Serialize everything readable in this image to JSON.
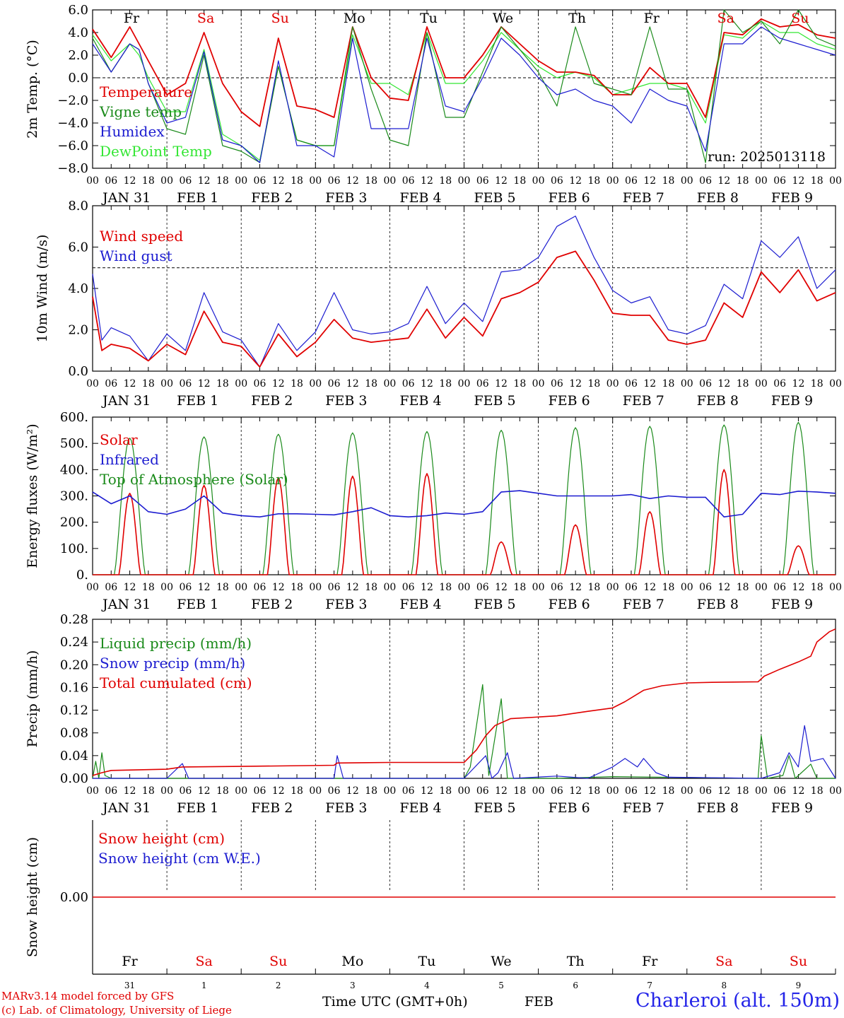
{
  "chart_data": [
    {
      "type": "line",
      "panel": "temperature",
      "ylabel": "2m Temp. (°C)",
      "ylim": [
        -8,
        6
      ],
      "ytick_labels": [
        "−8.0",
        "−6.0",
        "−4.0",
        "−2.0",
        "0.0",
        "2.0",
        "4.0",
        "6.0"
      ],
      "ytick_values": [
        -8,
        -6,
        -4,
        -2,
        0,
        2,
        4,
        6
      ],
      "ref_line": 0,
      "annotation": "run: 2025013118",
      "x_hours": [
        0,
        6,
        12,
        15,
        18,
        24,
        30,
        36,
        42,
        48,
        54,
        60,
        66,
        72,
        78,
        84,
        90,
        96,
        102,
        108,
        114,
        120,
        126,
        132,
        138,
        144,
        150,
        156,
        162,
        168,
        174,
        180,
        186,
        192,
        198,
        204,
        210,
        216,
        222,
        228,
        234,
        240
      ],
      "series": [
        {
          "name": "Temperature",
          "color": "#e00000",
          "values": [
            4.3,
            1.8,
            4.5,
            3.0,
            1.5,
            -1.5,
            -0.5,
            4.0,
            -0.5,
            -3.0,
            -4.3,
            3.5,
            -2.5,
            -2.8,
            -3.5,
            4.5,
            0.0,
            -1.8,
            -2.0,
            4.5,
            0.0,
            0.0,
            2.0,
            4.5,
            3.0,
            1.5,
            0.5,
            0.5,
            0.2,
            -1.5,
            -1.5,
            0.9,
            -0.5,
            -0.5,
            -3.5,
            4.0,
            3.8,
            5.2,
            4.5,
            4.7,
            3.8,
            3.5
          ]
        },
        {
          "name": "Vigne temp",
          "color": "#1a8a1a",
          "values": [
            3.5,
            0.5,
            3.0,
            2.5,
            -0.5,
            -4.5,
            -5.0,
            2.0,
            -6.0,
            -6.5,
            -7.5,
            1.0,
            -5.5,
            -6.0,
            -6.0,
            4.5,
            -1.0,
            -5.5,
            -6.0,
            4.0,
            -3.5,
            -3.5,
            0.5,
            4.5,
            2.5,
            0.5,
            -2.5,
            4.5,
            -0.5,
            -1.0,
            -1.5,
            4.5,
            -1.0,
            -1.0,
            -7.5,
            6.0,
            4.0,
            5.0,
            3.0,
            6.0,
            3.5,
            2.8
          ]
        },
        {
          "name": "Humidex",
          "color": "#1c1cd0",
          "values": [
            3.0,
            0.5,
            3.0,
            2.5,
            -0.5,
            -4.0,
            -3.5,
            2.3,
            -5.5,
            -6.0,
            -7.5,
            1.5,
            -6.0,
            -6.0,
            -7.0,
            3.5,
            -4.5,
            -4.5,
            -4.5,
            3.5,
            -2.5,
            -3.0,
            0.0,
            3.5,
            2.0,
            0.0,
            -1.5,
            -1.0,
            -2.0,
            -2.5,
            -4.0,
            -1.0,
            -2.0,
            -2.5,
            -6.5,
            3.0,
            3.0,
            4.5,
            3.5,
            3.0,
            2.5,
            2.0
          ]
        },
        {
          "name": "DewPoint Temp",
          "color": "#33e633",
          "values": [
            3.8,
            1.5,
            3.0,
            2.0,
            0.0,
            -3.0,
            -3.0,
            2.5,
            -5.0,
            -6.0,
            -7.3,
            1.0,
            -5.5,
            -6.0,
            -6.0,
            3.8,
            -0.5,
            -0.5,
            -1.5,
            4.0,
            -0.5,
            -0.5,
            1.5,
            4.0,
            2.5,
            1.0,
            0.0,
            0.5,
            0.0,
            -1.5,
            -1.0,
            -0.5,
            -0.5,
            -1.0,
            -4.0,
            3.8,
            3.5,
            5.0,
            4.0,
            4.0,
            3.0,
            2.5
          ]
        }
      ]
    },
    {
      "type": "line",
      "panel": "wind",
      "ylabel": "10m Wind (m/s)",
      "ylim": [
        0,
        8
      ],
      "ytick_labels": [
        "0.0",
        "2.0",
        "4.0",
        "6.0",
        "8.0"
      ],
      "ytick_values": [
        0,
        2,
        4,
        6,
        8
      ],
      "ref_line": 5,
      "x_hours": [
        0,
        3,
        6,
        12,
        18,
        24,
        30,
        36,
        42,
        48,
        54,
        60,
        66,
        72,
        78,
        84,
        90,
        96,
        102,
        108,
        114,
        120,
        126,
        132,
        138,
        144,
        150,
        156,
        162,
        168,
        174,
        180,
        186,
        192,
        198,
        204,
        210,
        216,
        222,
        228,
        234,
        240
      ],
      "series": [
        {
          "name": "Wind speed",
          "color": "#e00000",
          "values": [
            3.6,
            1.0,
            1.3,
            1.1,
            0.5,
            1.3,
            0.8,
            2.9,
            1.4,
            1.2,
            0.2,
            1.8,
            0.7,
            1.4,
            2.5,
            1.6,
            1.4,
            1.5,
            1.6,
            3.0,
            1.6,
            2.6,
            1.7,
            3.5,
            3.8,
            4.3,
            5.5,
            5.8,
            4.4,
            2.8,
            2.7,
            2.7,
            1.5,
            1.3,
            1.5,
            3.3,
            2.6,
            4.8,
            3.8,
            4.9,
            3.4,
            3.8
          ]
        },
        {
          "name": "Wind gust",
          "color": "#1c1cd0",
          "values": [
            4.7,
            1.5,
            2.1,
            1.7,
            0.5,
            1.8,
            1.0,
            3.8,
            1.9,
            1.5,
            0.2,
            2.3,
            1.0,
            1.9,
            3.8,
            2.0,
            1.8,
            1.9,
            2.3,
            4.1,
            2.3,
            3.3,
            2.4,
            4.8,
            4.9,
            5.5,
            7.0,
            7.5,
            5.5,
            3.9,
            3.3,
            3.6,
            2.0,
            1.8,
            2.2,
            4.2,
            3.5,
            6.3,
            5.5,
            6.5,
            4.0,
            4.9
          ]
        }
      ]
    },
    {
      "type": "line",
      "panel": "energy",
      "ylabel": "Energy fluxes (W/m²)",
      "ylim": [
        0,
        600
      ],
      "ytick_labels": [
        "0.",
        "100.",
        "200.",
        "300.",
        "400.",
        "500.",
        "600."
      ],
      "ytick_values": [
        0,
        100,
        200,
        300,
        400,
        500,
        600
      ],
      "peaks": [
        {
          "name": "Solar",
          "color": "#e00000",
          "day_peaks": [
            310,
            340,
            370,
            375,
            385,
            125,
            190,
            240,
            400,
            110
          ]
        },
        {
          "name": "Top of Atmosphere (Solar)",
          "color": "#1a8a1a",
          "day_peaks": [
            520,
            525,
            535,
            540,
            545,
            550,
            560,
            565,
            570,
            580
          ]
        }
      ],
      "series": [
        {
          "name": "Infrared",
          "color": "#1c1cd0",
          "x_hours": [
            0,
            6,
            12,
            18,
            24,
            30,
            36,
            42,
            48,
            54,
            60,
            66,
            72,
            78,
            84,
            90,
            96,
            102,
            108,
            114,
            120,
            126,
            132,
            138,
            144,
            150,
            156,
            162,
            168,
            174,
            180,
            186,
            192,
            198,
            204,
            210,
            216,
            222,
            228,
            234,
            240
          ],
          "values": [
            315,
            270,
            300,
            240,
            230,
            250,
            300,
            235,
            225,
            220,
            232,
            232,
            230,
            228,
            240,
            255,
            225,
            220,
            225,
            235,
            230,
            240,
            315,
            320,
            310,
            300,
            300,
            300,
            300,
            305,
            290,
            300,
            295,
            295,
            220,
            230,
            310,
            305,
            318,
            315,
            310
          ]
        }
      ]
    },
    {
      "type": "line",
      "panel": "precip",
      "ylabel": "Precip (mm/h)",
      "ylim": [
        0,
        0.28
      ],
      "ytick_labels": [
        "0.00",
        "0.04",
        "0.08",
        "0.12",
        "0.16",
        "0.20",
        "0.24",
        "0.28"
      ],
      "ytick_values": [
        0,
        0.04,
        0.08,
        0.12,
        0.16,
        0.2,
        0.24,
        0.28
      ],
      "series": [
        {
          "name": "Liquid precip (mm/h)",
          "color": "#1a8a1a",
          "points": [
            [
              0,
              0
            ],
            [
              1,
              0.03
            ],
            [
              2,
              0.0
            ],
            [
              3,
              0.045
            ],
            [
              4,
              0.005
            ],
            [
              6,
              0.0
            ],
            [
              96,
              0.0
            ],
            [
              120,
              0.0
            ],
            [
              122,
              0.02
            ],
            [
              126,
              0.165
            ],
            [
              128,
              0.005
            ],
            [
              132,
              0.14
            ],
            [
              134,
              0.0
            ],
            [
              150,
              0.0
            ],
            [
              168,
              0.003
            ],
            [
              215,
              0.0
            ],
            [
              216,
              0.075
            ],
            [
              218,
              0.0
            ],
            [
              223,
              0.005
            ],
            [
              225,
              0.04
            ],
            [
              227,
              0.0
            ],
            [
              232,
              0.025
            ],
            [
              234,
              0.0
            ],
            [
              240,
              0.0
            ]
          ]
        },
        {
          "name": "Snow precip (mm/h)",
          "color": "#1c1cd0",
          "points": [
            [
              0,
              0
            ],
            [
              24,
              0.0
            ],
            [
              29,
              0.026
            ],
            [
              31,
              0.0
            ],
            [
              78,
              0.0
            ],
            [
              79,
              0.04
            ],
            [
              81,
              0.0
            ],
            [
              120,
              0.0
            ],
            [
              127,
              0.04
            ],
            [
              129,
              0.0
            ],
            [
              131,
              0.01
            ],
            [
              134,
              0.045
            ],
            [
              136,
              0.0
            ],
            [
              150,
              0.004
            ],
            [
              160,
              0.0
            ],
            [
              168,
              0.02
            ],
            [
              172,
              0.035
            ],
            [
              176,
              0.02
            ],
            [
              178,
              0.035
            ],
            [
              182,
              0.01
            ],
            [
              186,
              0.002
            ],
            [
              216,
              0.0
            ],
            [
              222,
              0.01
            ],
            [
              225,
              0.045
            ],
            [
              228,
              0.02
            ],
            [
              230,
              0.093
            ],
            [
              232,
              0.03
            ],
            [
              236,
              0.035
            ],
            [
              240,
              0.0
            ]
          ]
        },
        {
          "name": "Total cumulated (cm)",
          "color": "#e00000",
          "points": [
            [
              0,
              0.005
            ],
            [
              3,
              0.01
            ],
            [
              6,
              0.014
            ],
            [
              24,
              0.016
            ],
            [
              29,
              0.02
            ],
            [
              48,
              0.021
            ],
            [
              78,
              0.023
            ],
            [
              79,
              0.027
            ],
            [
              96,
              0.028
            ],
            [
              120,
              0.028
            ],
            [
              124,
              0.05
            ],
            [
              127,
              0.075
            ],
            [
              130,
              0.093
            ],
            [
              135,
              0.105
            ],
            [
              150,
              0.11
            ],
            [
              160,
              0.118
            ],
            [
              168,
              0.124
            ],
            [
              172,
              0.135
            ],
            [
              178,
              0.155
            ],
            [
              184,
              0.163
            ],
            [
              192,
              0.168
            ],
            [
              200,
              0.169
            ],
            [
              215,
              0.17
            ],
            [
              217,
              0.18
            ],
            [
              222,
              0.192
            ],
            [
              228,
              0.205
            ],
            [
              232,
              0.215
            ],
            [
              234,
              0.24
            ],
            [
              238,
              0.258
            ],
            [
              240,
              0.263
            ]
          ]
        }
      ]
    },
    {
      "type": "line",
      "panel": "snow",
      "ylabel": "Snow height (cm)",
      "ytick_labels": [
        "0.00"
      ],
      "ytick_values": [
        0
      ],
      "series": [
        {
          "name": "Snow height (cm)",
          "color": "#e00000",
          "values": [
            0,
            0
          ]
        },
        {
          "name": "Snow height (cm W.E.)",
          "color": "#1c1cd0",
          "values": [
            0,
            0
          ]
        }
      ]
    }
  ],
  "axis": {
    "hour_ticks": [
      "00",
      "06",
      "12",
      "18"
    ],
    "date_labels": [
      "JAN 31",
      "FEB  1",
      "FEB  2",
      "FEB  3",
      "FEB  4",
      "FEB  5",
      "FEB  6",
      "FEB  7",
      "FEB  8",
      "FEB  9"
    ],
    "day_names": [
      "Fr",
      "Sa",
      "Su",
      "Mo",
      "Tu",
      "We",
      "Th",
      "Fr",
      "Sa",
      "Su"
    ],
    "day_colors": [
      "#000000",
      "#e00000",
      "#e00000",
      "#000000",
      "#000000",
      "#000000",
      "#000000",
      "#000000",
      "#e00000",
      "#e00000"
    ],
    "day_numbers": [
      "31",
      "1",
      "2",
      "3",
      "4",
      "5",
      "6",
      "7",
      "8",
      "9"
    ],
    "xlabel": "Time UTC (GMT+0h)",
    "month_label": "FEB"
  },
  "footer": {
    "credit_1": "MARv3.14 model forced by GFS",
    "credit_2": "(c) Lab. of Climatology, University of Liege",
    "station": "Charleroi (alt. 150m)"
  }
}
